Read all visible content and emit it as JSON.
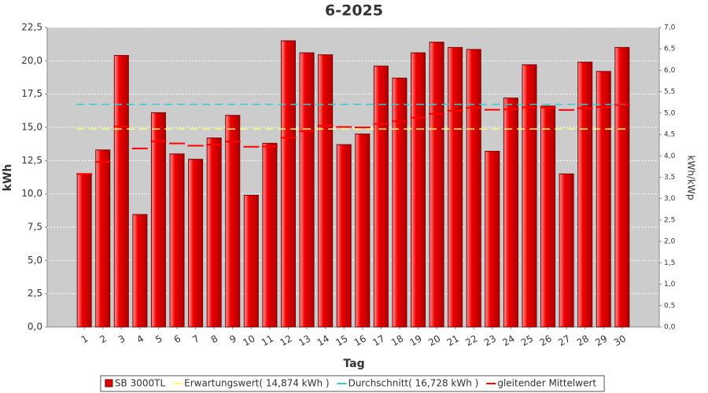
{
  "chart_data": {
    "type": "bar",
    "title": "6-2025",
    "x_label": "Tag",
    "y_label": "kWh",
    "y2_label": "kWh/kWp",
    "categories": [
      "1",
      "2",
      "3",
      "4",
      "5",
      "6",
      "7",
      "8",
      "9",
      "10",
      "11",
      "12",
      "13",
      "14",
      "15",
      "16",
      "17",
      "18",
      "19",
      "20",
      "21",
      "22",
      "23",
      "24",
      "25",
      "26",
      "27",
      "28",
      "29",
      "30"
    ],
    "series": [
      {
        "name": "SB 3000TL",
        "type": "bar",
        "color": "#e00000",
        "values": [
          11.5,
          13.3,
          20.4,
          8.45,
          16.1,
          13.0,
          12.6,
          14.2,
          15.9,
          9.9,
          13.8,
          21.5,
          20.6,
          20.45,
          13.7,
          14.5,
          19.6,
          18.7,
          20.6,
          21.4,
          21.0,
          20.85,
          13.2,
          17.2,
          19.7,
          16.6,
          11.5,
          19.9,
          19.2,
          21.0
        ]
      },
      {
        "name": "Erwartungswert( 14,874 kWh )",
        "type": "hline",
        "color": "#ffff66",
        "value": 14.874
      },
      {
        "name": "Durchschnitt( 16,728 kWh )",
        "type": "hline",
        "color": "#33cccc",
        "value": 16.728
      },
      {
        "name": "gleitender Mittelwert",
        "type": "line",
        "color": "#ff0000",
        "values": [
          11.5,
          12.4,
          15.07,
          13.41,
          13.95,
          13.79,
          13.62,
          13.69,
          13.94,
          13.54,
          13.56,
          14.22,
          14.71,
          15.12,
          15.03,
          14.99,
          15.26,
          15.46,
          15.73,
          16.01,
          16.25,
          16.46,
          16.32,
          16.35,
          16.49,
          16.49,
          16.31,
          16.43,
          16.53,
          16.68
        ]
      }
    ],
    "ylim": [
      0,
      22.5
    ],
    "yticks": [
      {
        "value": 0,
        "label": "0,0"
      },
      {
        "value": 2.5,
        "label": "2,5"
      },
      {
        "value": 5,
        "label": "5,0"
      },
      {
        "value": 7.5,
        "label": "7,5"
      },
      {
        "value": 10,
        "label": "10,0"
      },
      {
        "value": 12.5,
        "label": "12,5"
      },
      {
        "value": 15,
        "label": "15,0"
      },
      {
        "value": 17.5,
        "label": "17,5"
      },
      {
        "value": 20,
        "label": "20,0"
      },
      {
        "value": 22.5,
        "label": "22,5"
      }
    ],
    "y2lim": [
      0,
      7
    ],
    "y2ticks": [
      {
        "value": 0,
        "label": "0,0"
      },
      {
        "value": 0.5,
        "label": "0,5"
      },
      {
        "value": 1,
        "label": "1,0"
      },
      {
        "value": 1.5,
        "label": "1,5"
      },
      {
        "value": 2,
        "label": "2,0"
      },
      {
        "value": 2.5,
        "label": "2,5"
      },
      {
        "value": 3,
        "label": "3,0"
      },
      {
        "value": 3.5,
        "label": "3,5"
      },
      {
        "value": 4,
        "label": "4,0"
      },
      {
        "value": 4.5,
        "label": "4,5"
      },
      {
        "value": 5,
        "label": "5,0"
      },
      {
        "value": 5.5,
        "label": "5,5"
      },
      {
        "value": 6,
        "label": "6,0"
      },
      {
        "value": 6.5,
        "label": "6,5"
      },
      {
        "value": 7,
        "label": "7,0"
      }
    ],
    "grid": true
  }
}
